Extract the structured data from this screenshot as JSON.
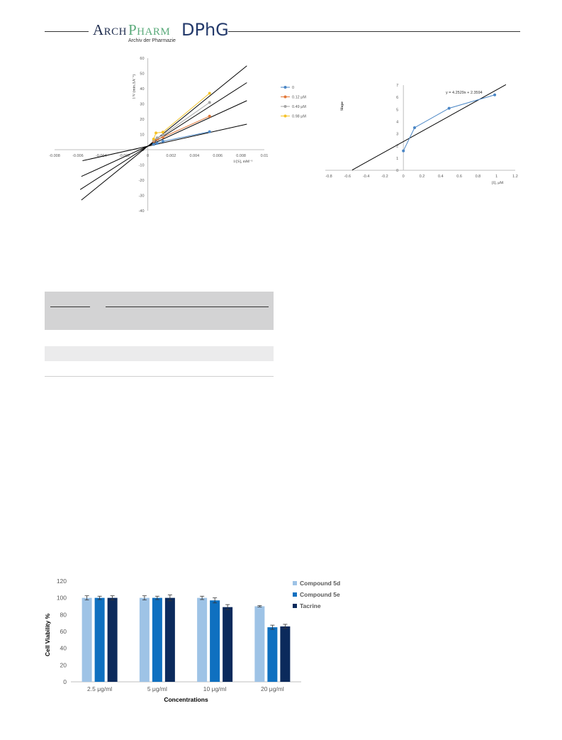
{
  "header": {
    "logo_arch": "Arch",
    "logo_pharm": "Pharm",
    "logo_dphg": "DPhG",
    "logo_subtitle": "Archiv der Pharmazie"
  },
  "charts": {
    "lineweaver_burk": {
      "type": "line",
      "ylabel": "1/V (min.ΔA⁻¹)",
      "xlabel": "1/[S], mM⁻¹",
      "x_ticks": [
        "-0.008",
        "-0.006",
        "-0.004",
        "-0.002",
        "0",
        "0.002",
        "0.004",
        "0.006",
        "0.008",
        "0.01"
      ],
      "y_ticks": [
        "60",
        "50",
        "40",
        "30",
        "20",
        "10",
        "0",
        "-10",
        "-20",
        "-30",
        "-40"
      ],
      "xlim": [
        -0.008,
        0.01
      ],
      "ylim": [
        -40,
        60
      ],
      "legend_position": "right",
      "series": [
        {
          "name": "0",
          "color": "#4a86c5",
          "points": [
            [
              0.0005,
              3.5
            ],
            [
              0.0008,
              4.2
            ],
            [
              0.0013,
              5.5
            ],
            [
              0.0053,
              11.8
            ]
          ],
          "fit": [
            0.7,
            2.5
          ]
        },
        {
          "name": "0.12 μM",
          "color": "#e3793a",
          "points": [
            [
              0.0005,
              5.5
            ],
            [
              0.0008,
              6.8
            ],
            [
              0.0013,
              8.2
            ],
            [
              0.0053,
              22
            ]
          ],
          "fit": [
            -0.0055,
            0.0085
          ]
        },
        {
          "name": "0.49 μM",
          "color": "#a5a5a5",
          "points": [
            [
              0.0005,
              6.2
            ],
            [
              0.0008,
              7.8
            ],
            [
              0.0013,
              9.5
            ],
            [
              0.0053,
              31
            ]
          ],
          "fit": [
            -0.0058,
            0.0085
          ]
        },
        {
          "name": "0.98 μM",
          "color": "#f5c228",
          "points": [
            [
              0.0005,
              7
            ],
            [
              0.0007,
              11
            ],
            [
              0.0013,
              11.5
            ],
            [
              0.0053,
              37
            ]
          ],
          "fit": [
            -0.0057,
            0.0085
          ]
        }
      ],
      "fit_lines": [
        {
          "slope": 1700,
          "intercept": 2.3,
          "x": [
            -0.0056,
            0.0085
          ]
        },
        {
          "slope": 3500,
          "intercept": 2.4,
          "x": [
            -0.0057,
            0.0085
          ]
        },
        {
          "slope": 4900,
          "intercept": 2.3,
          "x": [
            -0.0058,
            0.0085
          ]
        },
        {
          "slope": 6200,
          "intercept": 2.3,
          "x": [
            -0.0057,
            0.0085
          ]
        }
      ]
    },
    "secondary_plot": {
      "type": "line",
      "ylabel": "Slope",
      "xlabel": "[I], μM",
      "x_ticks": [
        "-0.8",
        "-0.6",
        "-0.4",
        "-0.2",
        "0",
        "0.2",
        "0.4",
        "0.6",
        "0.8",
        "1",
        "1.2"
      ],
      "y_ticks": [
        "7",
        "6",
        "5",
        "4",
        "3",
        "2",
        "1",
        "0"
      ],
      "xlim": [
        -0.8,
        1.2
      ],
      "ylim": [
        0,
        7
      ],
      "equation": "y = 4.2529x + 2.3594",
      "points": [
        [
          0,
          1.6
        ],
        [
          0.12,
          3.5
        ],
        [
          0.49,
          5.1
        ],
        [
          0.98,
          6.2
        ]
      ],
      "fit_slope": 4.2529,
      "fit_intercept": 2.3594,
      "point_color": "#4a86c5"
    },
    "cell_viability": {
      "type": "bar",
      "ylabel": "Cell Viability %",
      "xlabel": "Concentrations",
      "categories": [
        "2.5 μg/ml",
        "5 μg/ml",
        "10 μg/ml",
        "20 μg/ml"
      ],
      "y_ticks": [
        "120",
        "100",
        "80",
        "60",
        "40",
        "20",
        "0"
      ],
      "ylim": [
        0,
        120
      ],
      "legend_position": "top-right",
      "series": [
        {
          "name": "Compound 5d",
          "color": "#9ec3e6",
          "values": [
            100,
            100,
            100,
            90
          ],
          "errors": [
            2.5,
            2.5,
            2,
            0.8
          ]
        },
        {
          "name": "Compound 5e",
          "color": "#0f70c0",
          "values": [
            100,
            100,
            97,
            65
          ],
          "errors": [
            2,
            2,
            3,
            2.5
          ]
        },
        {
          "name": "Tacrine",
          "color": "#0b2a5c",
          "values": [
            100,
            100,
            89,
            66
          ],
          "errors": [
            2.5,
            3.5,
            3,
            2.5
          ]
        }
      ]
    }
  }
}
